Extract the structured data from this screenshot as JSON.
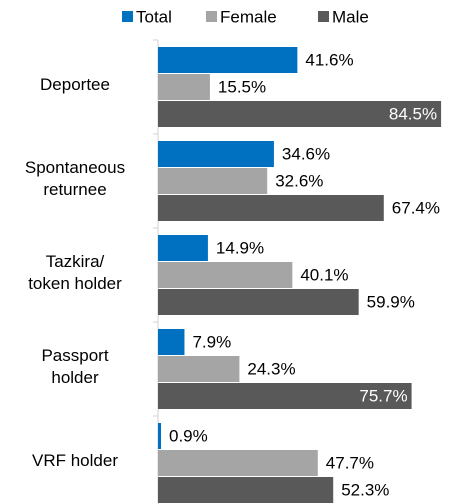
{
  "chart_data": {
    "type": "bar",
    "orientation": "horizontal",
    "categories": [
      "Deportee",
      "Spontaneous\nreturnee",
      "Tazkira/\ntoken holder",
      "Passport\nholder",
      "VRF holder"
    ],
    "series": [
      {
        "name": "Total",
        "color": "#0070c0",
        "values": [
          41.6,
          34.6,
          14.9,
          7.9,
          0.9
        ],
        "value_labels": [
          "41.6%",
          "34.6%",
          "14.9%",
          "7.9%",
          "0.9%"
        ]
      },
      {
        "name": "Female",
        "color": "#a5a5a5",
        "values": [
          15.5,
          32.6,
          40.1,
          24.3,
          47.7
        ],
        "value_labels": [
          "15.5%",
          "32.6%",
          "40.1%",
          "24.3%",
          "47.7%"
        ]
      },
      {
        "name": "Male",
        "color": "#595959",
        "values": [
          84.5,
          67.4,
          59.9,
          75.7,
          52.3
        ],
        "value_labels": [
          "84.5%",
          "67.4%",
          "59.9%",
          "75.7%",
          "52.3%"
        ]
      }
    ],
    "legend": "top"
  }
}
